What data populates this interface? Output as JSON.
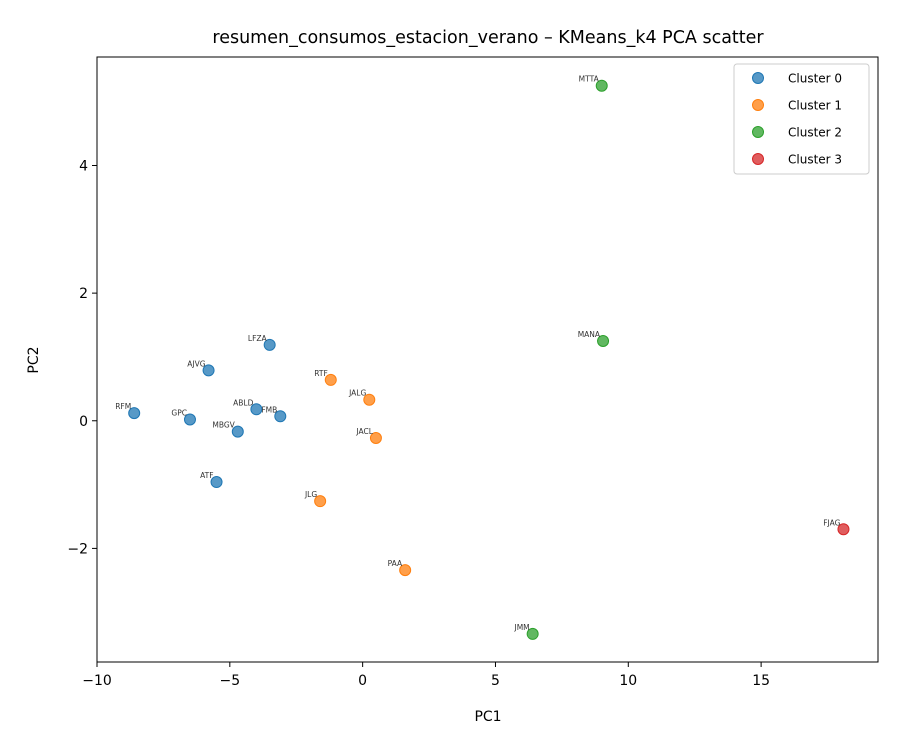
{
  "chart_data": {
    "type": "scatter",
    "title": "resumen_consumos_estacion_verano – KMeans_k4 PCA scatter",
    "xlabel": "PC1",
    "ylabel": "PC2",
    "xlim": [
      -10,
      19.4
    ],
    "ylim": [
      -3.78,
      5.7
    ],
    "xticks": [
      -10,
      -5,
      0,
      5,
      10,
      15
    ],
    "xtick_labels": [
      "−10",
      "−5",
      "0",
      "5",
      "10",
      "15"
    ],
    "yticks": [
      -2,
      0,
      2,
      4
    ],
    "ytick_labels": [
      "−2",
      "0",
      "2",
      "4"
    ],
    "grid": false,
    "legend_position": "top-right",
    "series": [
      {
        "name": "Cluster 0",
        "color": "#1f77b4",
        "points": [
          {
            "label": "RFM",
            "x": -8.6,
            "y": 0.12
          },
          {
            "label": "GPC",
            "x": -6.5,
            "y": 0.02
          },
          {
            "label": "AJVG",
            "x": -5.8,
            "y": 0.79
          },
          {
            "label": "LFZA",
            "x": -3.5,
            "y": 1.19
          },
          {
            "label": "ABLD",
            "x": -4.0,
            "y": 0.18
          },
          {
            "label": "FMB",
            "x": -3.1,
            "y": 0.07
          },
          {
            "label": "MBGV",
            "x": -4.7,
            "y": -0.17
          },
          {
            "label": "ATF",
            "x": -5.5,
            "y": -0.96
          }
        ]
      },
      {
        "name": "Cluster 1",
        "color": "#ff7f0e",
        "points": [
          {
            "label": "RTF",
            "x": -1.2,
            "y": 0.64
          },
          {
            "label": "JALG",
            "x": 0.25,
            "y": 0.33
          },
          {
            "label": "JACL",
            "x": 0.5,
            "y": -0.27
          },
          {
            "label": "JLG",
            "x": -1.6,
            "y": -1.26
          },
          {
            "label": "PAA",
            "x": 1.6,
            "y": -2.34
          }
        ]
      },
      {
        "name": "Cluster 2",
        "color": "#2ca02c",
        "points": [
          {
            "label": "MTTA",
            "x": 9.0,
            "y": 5.25
          },
          {
            "label": "MANA",
            "x": 9.05,
            "y": 1.25
          },
          {
            "label": "JMM",
            "x": 6.4,
            "y": -3.34
          }
        ]
      },
      {
        "name": "Cluster 3",
        "color": "#d62728",
        "points": [
          {
            "label": "FJAG",
            "x": 18.1,
            "y": -1.7
          }
        ]
      }
    ]
  }
}
